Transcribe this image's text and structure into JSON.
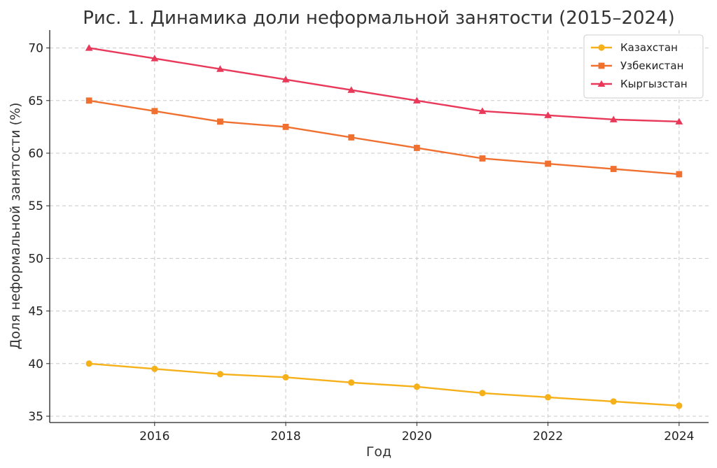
{
  "chart_data": {
    "type": "line",
    "title": "Рис. 1. Динамика доли неформальной занятости (2015–2024)",
    "xlabel": "Год",
    "ylabel": "Доля неформальной занятости (%)",
    "x": [
      2015,
      2016,
      2017,
      2018,
      2019,
      2020,
      2021,
      2022,
      2023,
      2024
    ],
    "xlim": [
      2014.4,
      2024.45
    ],
    "ylim": [
      34.4,
      71.7
    ],
    "x_ticks": [
      2016,
      2018,
      2020,
      2022,
      2024
    ],
    "y_ticks": [
      35,
      40,
      45,
      50,
      55,
      60,
      65,
      70
    ],
    "grid": true,
    "legend_position": "top-right",
    "series": [
      {
        "name": "Казахстан",
        "color": "#f5b01a",
        "marker": "circle",
        "values": [
          40.0,
          39.5,
          39.0,
          38.7,
          38.2,
          37.8,
          37.2,
          36.8,
          36.4,
          36.0
        ]
      },
      {
        "name": "Узбекистан",
        "color": "#f07030",
        "marker": "square",
        "values": [
          65.0,
          64.0,
          63.0,
          62.5,
          61.5,
          60.5,
          59.5,
          59.0,
          58.5,
          58.0
        ]
      },
      {
        "name": "Кыргызстан",
        "color": "#e8395a",
        "marker": "triangle",
        "values": [
          70.0,
          69.0,
          68.0,
          67.0,
          66.0,
          65.0,
          64.0,
          63.6,
          63.2,
          63.0
        ]
      }
    ]
  }
}
